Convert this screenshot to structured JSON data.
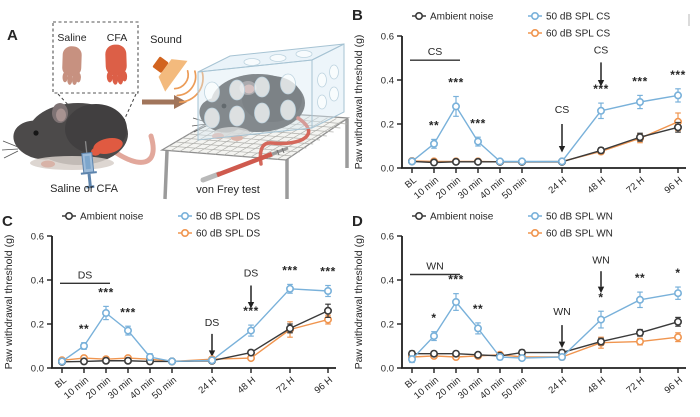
{
  "panel_a": {
    "letter": "A",
    "saline": "Saline",
    "cfa": "CFA",
    "sound": "Sound",
    "injection": "Saline or CFA",
    "test": "von Frey test"
  },
  "colors": {
    "ambient": "#3a3a3a",
    "blue": "#79b1da",
    "orange": "#f0954f",
    "axis": "#1f1f1f",
    "star": "#2e2e2e"
  },
  "chart_data": [
    {
      "panel": "B",
      "type": "line",
      "ylabel": "Paw withdrawal threshold (g)",
      "ylim": [
        0,
        0.6
      ],
      "yticks": [
        "0.0",
        "0.2",
        "0.4",
        "0.6"
      ],
      "ytick_values": [
        0,
        0.2,
        0.4,
        0.6
      ],
      "categories": [
        "BL",
        "10 min",
        "20 min",
        "30 min",
        "40 min",
        "50 min",
        "24 H",
        "48 H",
        "72 H",
        "96 H"
      ],
      "legend_position": "top",
      "series": [
        {
          "name": "Ambient noise",
          "color_key": "ambient",
          "values": [
            0.03,
            0.025,
            0.028,
            0.028,
            0.028,
            0.028,
            0.028,
            0.08,
            0.14,
            0.185
          ],
          "err": [
            0.006,
            0.005,
            0.005,
            0.005,
            0.005,
            0.005,
            0.005,
            0.012,
            0.018,
            0.022
          ]
        },
        {
          "name": "50 dB SPL CS",
          "color_key": "blue",
          "values": [
            0.03,
            0.11,
            0.28,
            0.12,
            0.03,
            0.03,
            0.03,
            0.26,
            0.3,
            0.33
          ],
          "err": [
            0.008,
            0.02,
            0.045,
            0.02,
            0.006,
            0.006,
            0.006,
            0.035,
            0.03,
            0.03
          ]
        },
        {
          "name": "60 dB SPL CS",
          "color_key": "orange",
          "values": [
            0.032,
            0.03,
            0.03,
            0.03,
            0.028,
            0.028,
            0.03,
            0.075,
            0.135,
            0.21
          ],
          "err": [
            0.006,
            0.005,
            0.005,
            0.005,
            0.005,
            0.005,
            0.005,
            0.01,
            0.02,
            0.04
          ]
        }
      ],
      "significance": [
        "",
        "**",
        "***",
        "***",
        "",
        "",
        "",
        "***",
        "***",
        "***"
      ],
      "stim_bar": {
        "label": "CS",
        "from": "BL",
        "to": "20 min",
        "y": 0.49
      },
      "arrows": [
        {
          "label": "CS",
          "at": "24 H",
          "label_y": 0.25,
          "from_y": 0.2,
          "to_y": 0.1
        },
        {
          "label": "CS",
          "at": "48 H",
          "label_y": 0.52,
          "from_y": 0.48,
          "to_y": 0.4
        }
      ]
    },
    {
      "panel": "C",
      "type": "line",
      "ylabel": "Paw withdrawal threshold (g)",
      "ylim": [
        0,
        0.6
      ],
      "yticks": [
        "0.0",
        "0.2",
        "0.4",
        "0.6"
      ],
      "ytick_values": [
        0,
        0.2,
        0.4,
        0.6
      ],
      "categories": [
        "BL",
        "10 min",
        "20 min",
        "30 min",
        "40 min",
        "50 min",
        "24 H",
        "48 H",
        "72 H",
        "96 H"
      ],
      "legend_position": "top",
      "series": [
        {
          "name": "Ambient noise",
          "color_key": "ambient",
          "values": [
            0.028,
            0.03,
            0.033,
            0.033,
            0.03,
            0.03,
            0.033,
            0.07,
            0.18,
            0.26
          ],
          "err": [
            0.005,
            0.005,
            0.005,
            0.005,
            0.005,
            0.005,
            0.005,
            0.01,
            0.02,
            0.03
          ]
        },
        {
          "name": "50 dB SPL DS",
          "color_key": "blue",
          "values": [
            0.03,
            0.1,
            0.25,
            0.17,
            0.05,
            0.03,
            0.035,
            0.17,
            0.36,
            0.35
          ],
          "err": [
            0.008,
            0.015,
            0.03,
            0.02,
            0.015,
            0.005,
            0.006,
            0.025,
            0.02,
            0.025
          ]
        },
        {
          "name": "60 dB SPL DS",
          "color_key": "orange",
          "values": [
            0.035,
            0.045,
            0.04,
            0.045,
            0.04,
            0.03,
            0.04,
            0.045,
            0.175,
            0.22
          ],
          "err": [
            0.006,
            0.008,
            0.006,
            0.008,
            0.006,
            0.005,
            0.006,
            0.008,
            0.035,
            0.02
          ]
        }
      ],
      "significance": [
        "",
        "**",
        "***",
        "***",
        "",
        "",
        "",
        "***",
        "***",
        "***"
      ],
      "stim_bar": {
        "label": "DS",
        "from": "BL",
        "to": "20 min",
        "y": 0.385
      },
      "arrows": [
        {
          "label": "DS",
          "at": "24 H",
          "label_y": 0.19,
          "from_y": 0.155,
          "to_y": 0.08
        },
        {
          "label": "DS",
          "at": "48 H",
          "label_y": 0.415,
          "from_y": 0.375,
          "to_y": 0.3
        }
      ]
    },
    {
      "panel": "D",
      "type": "line",
      "ylabel": "Paw withdrawal threshold (g)",
      "ylim": [
        0,
        0.6
      ],
      "yticks": [
        "0.0",
        "0.2",
        "0.4",
        "0.6"
      ],
      "ytick_values": [
        0,
        0.2,
        0.4,
        0.6
      ],
      "categories": [
        "BL",
        "10 min",
        "20 min",
        "30 min",
        "40 min",
        "50 min",
        "24 H",
        "48 H",
        "72 H",
        "96 H"
      ],
      "legend_position": "top",
      "series": [
        {
          "name": "Ambient noise",
          "color_key": "ambient",
          "values": [
            0.065,
            0.065,
            0.065,
            0.06,
            0.055,
            0.07,
            0.07,
            0.12,
            0.16,
            0.21
          ],
          "err": [
            0.012,
            0.01,
            0.01,
            0.008,
            0.008,
            0.012,
            0.012,
            0.015,
            0.015,
            0.02
          ]
        },
        {
          "name": "50 dB SPL WN",
          "color_key": "blue",
          "values": [
            0.04,
            0.145,
            0.3,
            0.18,
            0.05,
            0.045,
            0.05,
            0.22,
            0.31,
            0.34
          ],
          "err": [
            0.015,
            0.02,
            0.038,
            0.025,
            0.012,
            0.01,
            0.012,
            0.038,
            0.035,
            0.028
          ]
        },
        {
          "name": "60 dB SPL WN",
          "color_key": "orange",
          "values": [
            0.05,
            0.055,
            0.05,
            0.055,
            0.06,
            0.05,
            0.05,
            0.115,
            0.12,
            0.14
          ],
          "err": [
            0.008,
            0.008,
            0.006,
            0.008,
            0.008,
            0.006,
            0.008,
            0.025,
            0.015,
            0.02
          ]
        }
      ],
      "significance": [
        "",
        "*",
        "***",
        "**",
        "",
        "",
        "",
        "*",
        "**",
        "*"
      ],
      "stim_bar": {
        "label": "WN",
        "from": "BL",
        "to": "20 min",
        "y": 0.425
      },
      "arrows": [
        {
          "label": "WN",
          "at": "24 H",
          "label_y": 0.24,
          "from_y": 0.195,
          "to_y": 0.12
        },
        {
          "label": "WN",
          "at": "48 H",
          "label_y": 0.475,
          "from_y": 0.44,
          "to_y": 0.37
        }
      ]
    }
  ]
}
